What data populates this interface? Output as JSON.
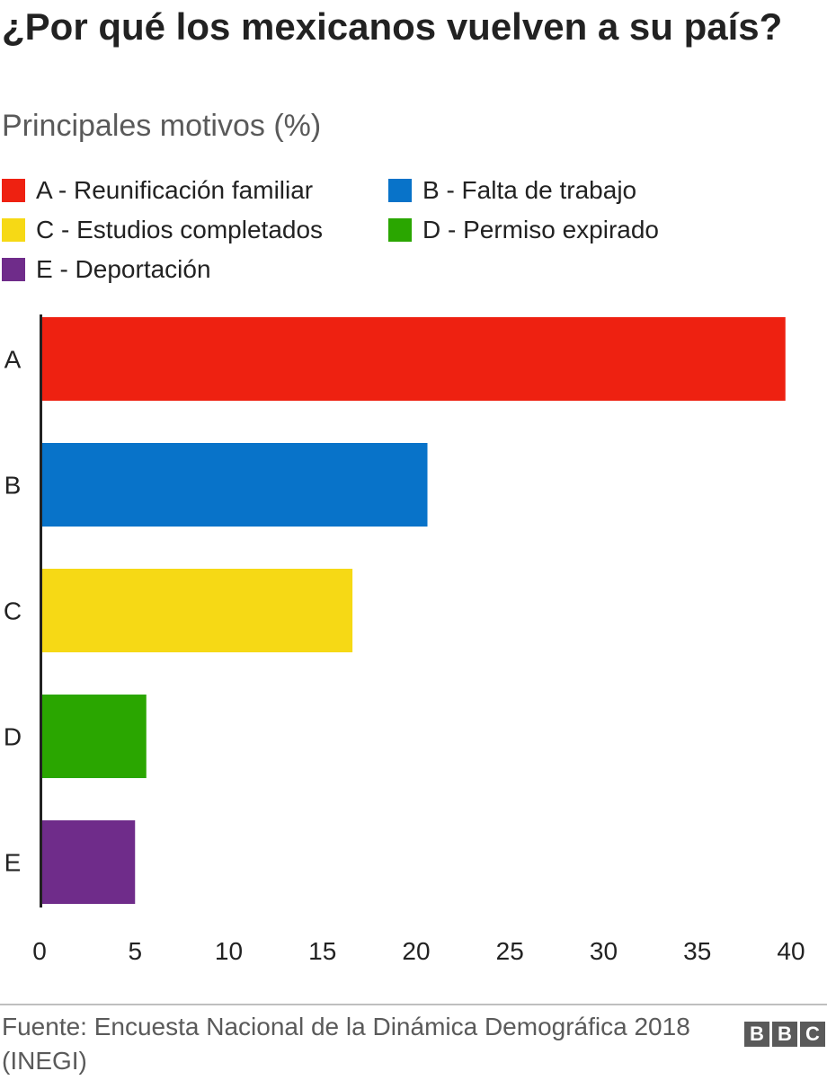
{
  "header": {
    "title": "¿Por qué los mexicanos vuelven a su país?",
    "subtitle": "Principales motivos (%)"
  },
  "legend": {
    "items": [
      {
        "label": "A - Reunificación familiar",
        "color": "#ee2111"
      },
      {
        "label": "B - Falta de trabajo",
        "color": "#0873c9"
      },
      {
        "label": "C - Estudios completados",
        "color": "#f6d915"
      },
      {
        "label": "D - Permiso expirado",
        "color": "#2aa600"
      },
      {
        "label": "E - Deportación",
        "color": "#6f2c8a"
      }
    ]
  },
  "chart_data": {
    "type": "bar",
    "orientation": "horizontal",
    "categories": [
      "A",
      "B",
      "C",
      "D",
      "E"
    ],
    "values": [
      39.7,
      20.6,
      16.6,
      5.6,
      5.0
    ],
    "colors": [
      "#ee2111",
      "#0873c9",
      "#f6d915",
      "#2aa600",
      "#6f2c8a"
    ],
    "title": "¿Por qué los mexicanos vuelven a su país?",
    "subtitle": "Principales motivos (%)",
    "xlim": [
      0,
      40
    ],
    "xticks": [
      0,
      5,
      10,
      15,
      20,
      25,
      30,
      35,
      40
    ],
    "grid": false,
    "legend_position": "top"
  },
  "footer": {
    "source": "Fuente: Encuesta Nacional de la Dinámica Demográfica 2018 (INEGI)",
    "brand_letters": [
      "B",
      "B",
      "C"
    ]
  }
}
